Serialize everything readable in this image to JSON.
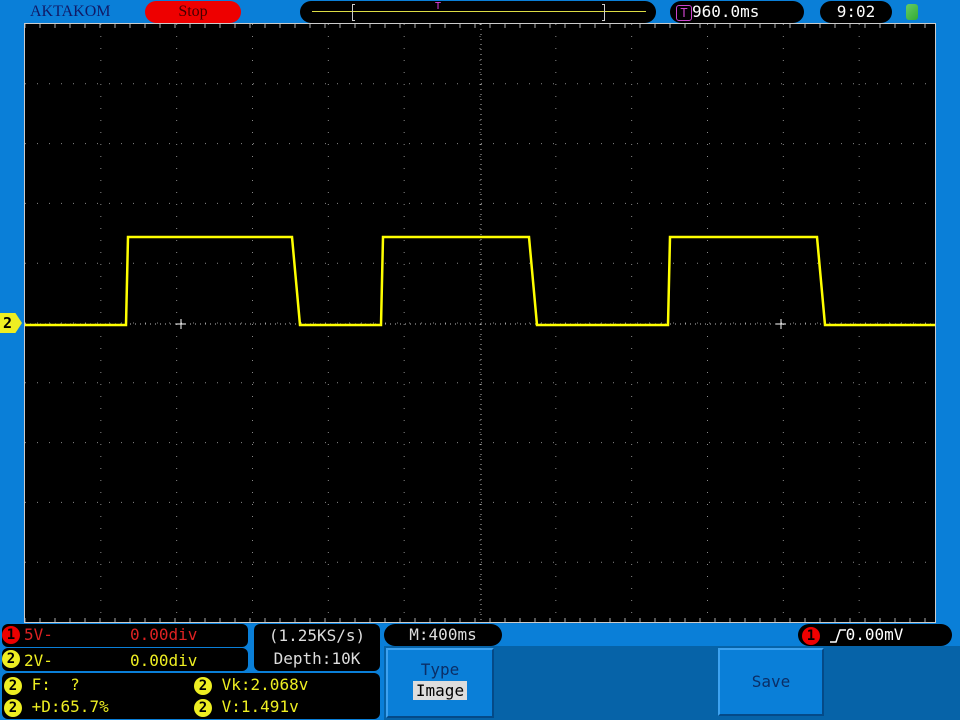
{
  "header": {
    "brand": "AKTAKOM",
    "run_state": "Stop",
    "trigger_time": "960.0ms",
    "clock": "9:02",
    "trigger_marker": "T",
    "usb_icon": "usb-icon"
  },
  "channels": [
    {
      "num": "1",
      "scale": "5V-",
      "offset": "0.00div",
      "color": "#ff2020"
    },
    {
      "num": "2",
      "scale": "2V-",
      "offset": "0.00div",
      "color": "#eeee22"
    }
  ],
  "acquisition": {
    "sample_rate": "(1.25KS/s)",
    "depth": "Depth:10K"
  },
  "timebase": "M:400ms",
  "trigger": {
    "source": "1",
    "slope": "rising",
    "level": "0.00mV"
  },
  "measurements": [
    {
      "ch": "2",
      "text": "F:  ?"
    },
    {
      "ch": "2",
      "text": "Vk:2.068v"
    },
    {
      "ch": "2",
      "text": "+D:65.7%"
    },
    {
      "ch": "2",
      "text": "V:1.491v"
    }
  ],
  "ch2_marker": "2",
  "menu": {
    "type_label": "Type",
    "type_value": "Image",
    "save_label": "Save"
  },
  "colors": {
    "trace": "#ffff00",
    "panel": "#0a7fd8",
    "menu": "#0663a8"
  }
}
